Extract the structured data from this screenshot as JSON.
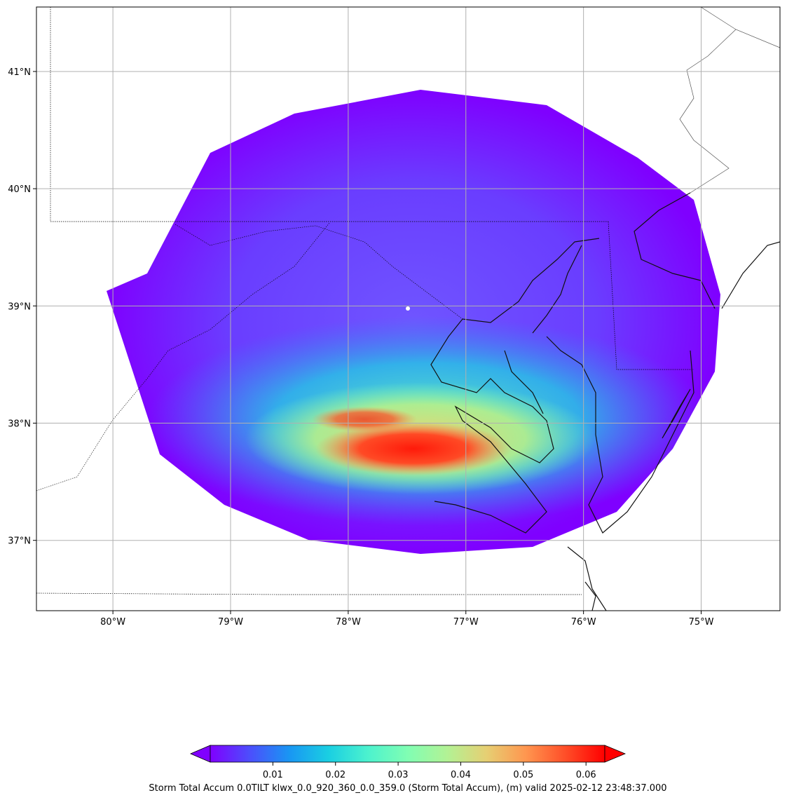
{
  "map": {
    "lon_range": [
      -80.65,
      -74.33
    ],
    "lat_range": [
      36.4,
      41.55
    ],
    "lon_ticks": [
      {
        "value": -80,
        "label": "80°W"
      },
      {
        "value": -79,
        "label": "79°W"
      },
      {
        "value": -78,
        "label": "78°W"
      },
      {
        "value": -77,
        "label": "77°W"
      },
      {
        "value": -76,
        "label": "76°W"
      },
      {
        "value": -75,
        "label": "75°W"
      }
    ],
    "lat_ticks": [
      {
        "value": 41,
        "label": "41°N"
      },
      {
        "value": 40,
        "label": "40°N"
      },
      {
        "value": 39,
        "label": "39°N"
      },
      {
        "value": 38,
        "label": "38°N"
      },
      {
        "value": 37,
        "label": "37°N"
      }
    ],
    "grid": true,
    "radar_site": {
      "lon": -77.48,
      "lat": 38.98
    },
    "colors": {
      "low": "#7f00ff",
      "mid": "#80ffb4",
      "high": "#ff0000",
      "grid": "#b0b0b0",
      "coast": "#111111"
    }
  },
  "colorbar": {
    "colormap": "rainbow",
    "range": [
      0.0,
      0.063
    ],
    "extend": "both",
    "ticks": [
      {
        "value": 0.01,
        "label": "0.01"
      },
      {
        "value": 0.02,
        "label": "0.02"
      },
      {
        "value": 0.03,
        "label": "0.03"
      },
      {
        "value": 0.04,
        "label": "0.04"
      },
      {
        "value": 0.05,
        "label": "0.05"
      },
      {
        "value": 0.06,
        "label": "0.06"
      }
    ],
    "label": "Storm Total Accum 0.0TILT klwx_0.0_920_360_0.0_359.0 (Storm Total Accum), (m) valid 2025-02-12 23:48:37.000"
  }
}
